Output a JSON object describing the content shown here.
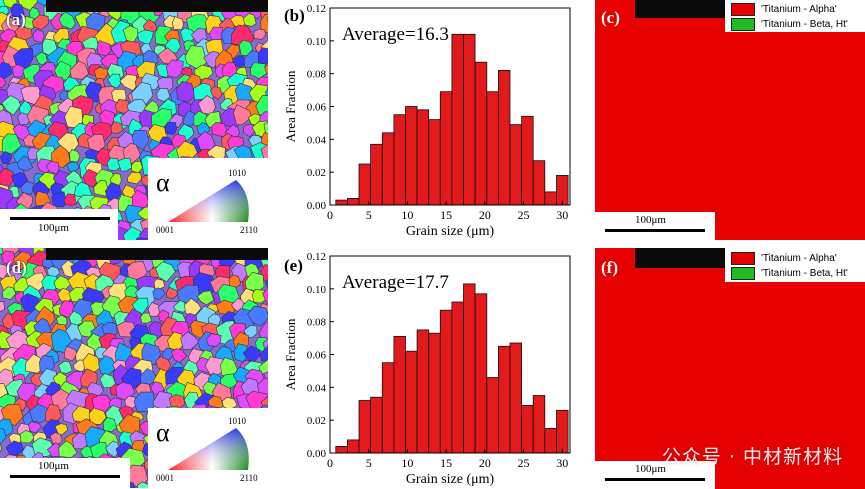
{
  "panels": {
    "a": "(a)",
    "b": "(b)",
    "c": "(c)",
    "d": "(d)",
    "e": "(e)",
    "f": "(f)"
  },
  "ebsd": {
    "scale_bar": "100μm",
    "alpha_symbol": "α",
    "ipf_corners": {
      "top": "1010",
      "left": "0001",
      "right": "2110"
    }
  },
  "phase_map": {
    "scale_bar": "100μm",
    "legend": [
      {
        "label": "'Titanium - Alpha'",
        "color": "#e60000"
      },
      {
        "label": "'Titanium - Beta, Ht'",
        "color": "#22bb22"
      }
    ]
  },
  "watermark": "公众号 · 中材新材料",
  "chart_data": [
    {
      "type": "bar",
      "panel": "(b)",
      "annotation": "Average=16.3",
      "xlabel": "Grain size (μm)",
      "ylabel": "Area Fraction",
      "x": [
        1.5,
        3,
        4.5,
        6,
        7.5,
        9,
        10.5,
        12,
        13.5,
        15,
        16.5,
        18,
        19.5,
        21,
        22.5,
        24,
        25.5,
        27,
        28.5,
        30
      ],
      "values": [
        0.003,
        0.004,
        0.025,
        0.037,
        0.044,
        0.055,
        0.06,
        0.058,
        0.052,
        0.069,
        0.104,
        0.104,
        0.087,
        0.069,
        0.082,
        0.049,
        0.054,
        0.027,
        0.008,
        0.018
      ],
      "xlim": [
        0,
        31
      ],
      "ylim": [
        0,
        0.12
      ],
      "xticks": [
        0,
        5,
        10,
        15,
        20,
        25,
        30
      ],
      "yticks": [
        "0.00",
        "0.02",
        "0.04",
        "0.06",
        "0.08",
        "0.10",
        "0.12"
      ],
      "bar_color": "#e31a1c"
    },
    {
      "type": "bar",
      "panel": "(e)",
      "annotation": "Average=17.7",
      "xlabel": "Grain size (μm)",
      "ylabel": "Area Fraction",
      "x": [
        1.5,
        3,
        4.5,
        6,
        7.5,
        9,
        10.5,
        12,
        13.5,
        15,
        16.5,
        18,
        19.5,
        21,
        22.5,
        24,
        25.5,
        27,
        28.5,
        30
      ],
      "values": [
        0.004,
        0.008,
        0.032,
        0.034,
        0.055,
        0.071,
        0.062,
        0.075,
        0.073,
        0.087,
        0.092,
        0.103,
        0.097,
        0.046,
        0.065,
        0.067,
        0.029,
        0.035,
        0.015,
        0.026
      ],
      "xlim": [
        0,
        31
      ],
      "ylim": [
        0,
        0.12
      ],
      "xticks": [
        0,
        5,
        10,
        15,
        20,
        25,
        30
      ],
      "yticks": [
        "0.00",
        "0.02",
        "0.04",
        "0.06",
        "0.08",
        "0.10",
        "0.12"
      ],
      "bar_color": "#e31a1c"
    }
  ]
}
